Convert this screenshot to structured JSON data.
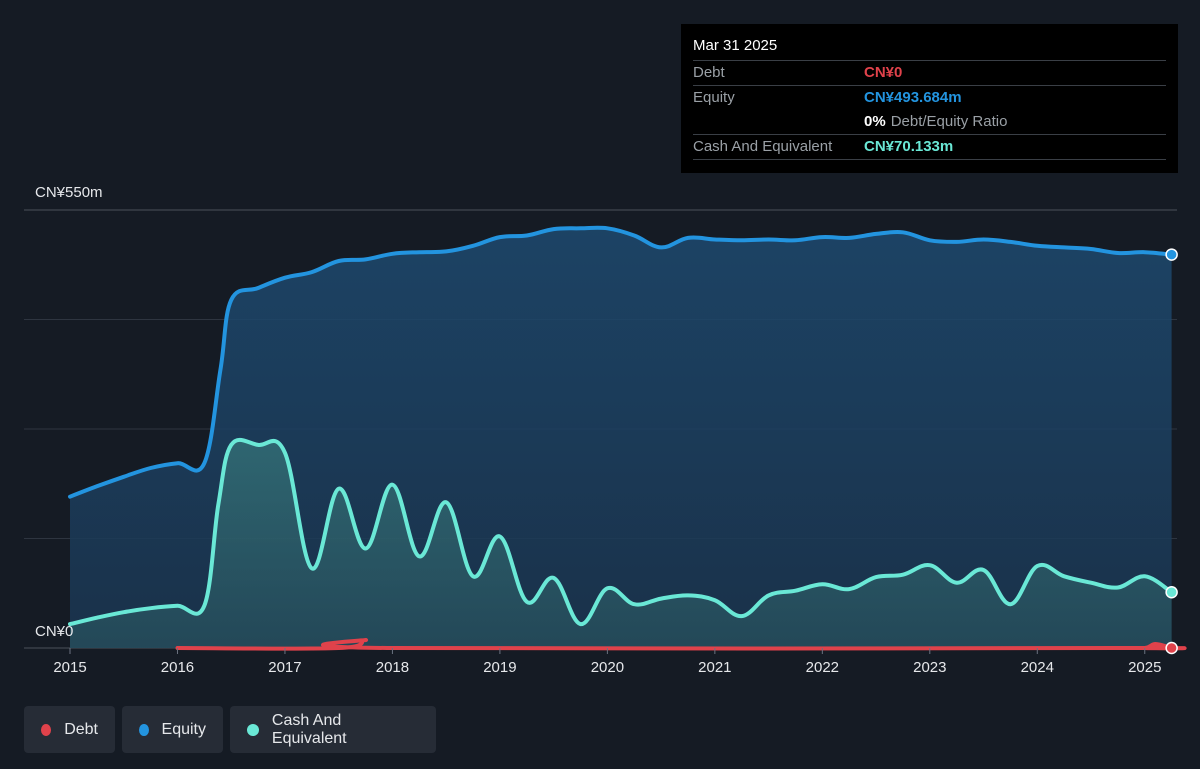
{
  "tooltip": {
    "date": "Mar 31 2025",
    "debt_label": "Debt",
    "debt_value": "CN¥0",
    "equity_label": "Equity",
    "equity_value": "CN¥493.684m",
    "ratio_value": "0%",
    "ratio_label": "Debt/Equity Ratio",
    "cash_label": "Cash And Equivalent",
    "cash_value": "CN¥70.133m"
  },
  "colors": {
    "background": "#151b24",
    "debt": "#e0424b",
    "equity": "#2394df",
    "cash": "#6ae8d6"
  },
  "legend": [
    {
      "label": "Debt",
      "color": "#e0424b"
    },
    {
      "label": "Equity",
      "color": "#2394df"
    },
    {
      "label": "Cash And Equivalent",
      "color": "#6ae8d6"
    }
  ],
  "chart_data": {
    "type": "area",
    "y_top_label": "CN¥550m",
    "y_bottom_label": "CN¥0",
    "ylim": [
      0,
      550
    ],
    "xlim": [
      2015,
      2025.3
    ],
    "grid": true,
    "legend_placement": "bottom-left",
    "x_ticks": [
      "2015",
      "2016",
      "2017",
      "2018",
      "2019",
      "2020",
      "2021",
      "2022",
      "2023",
      "2024",
      "2025"
    ],
    "series": [
      {
        "name": "Equity",
        "points": [
          [
            2015.0,
            190
          ],
          [
            2015.25,
            203
          ],
          [
            2015.5,
            215
          ],
          [
            2015.75,
            226
          ],
          [
            2016.0,
            232
          ],
          [
            2016.25,
            232
          ],
          [
            2016.4,
            350
          ],
          [
            2016.5,
            437
          ],
          [
            2016.75,
            452
          ],
          [
            2017.0,
            465
          ],
          [
            2017.25,
            472
          ],
          [
            2017.5,
            486
          ],
          [
            2017.75,
            488
          ],
          [
            2018.0,
            495
          ],
          [
            2018.25,
            497
          ],
          [
            2018.5,
            498
          ],
          [
            2018.75,
            505
          ],
          [
            2019.0,
            516
          ],
          [
            2019.25,
            518
          ],
          [
            2019.5,
            526
          ],
          [
            2019.75,
            527
          ],
          [
            2020.0,
            527
          ],
          [
            2020.25,
            518
          ],
          [
            2020.5,
            503
          ],
          [
            2020.75,
            515
          ],
          [
            2021.0,
            513
          ],
          [
            2021.25,
            512
          ],
          [
            2021.5,
            513
          ],
          [
            2021.75,
            512
          ],
          [
            2022.0,
            516
          ],
          [
            2022.25,
            515
          ],
          [
            2022.5,
            520
          ],
          [
            2022.75,
            522
          ],
          [
            2023.0,
            512
          ],
          [
            2023.25,
            510
          ],
          [
            2023.5,
            513
          ],
          [
            2023.75,
            510
          ],
          [
            2024.0,
            505
          ],
          [
            2024.25,
            503
          ],
          [
            2024.5,
            501
          ],
          [
            2024.75,
            496
          ],
          [
            2025.0,
            497
          ],
          [
            2025.25,
            494
          ]
        ]
      },
      {
        "name": "Cash And Equivalent",
        "points": [
          [
            2015.0,
            30
          ],
          [
            2015.25,
            38
          ],
          [
            2015.5,
            45
          ],
          [
            2015.75,
            50
          ],
          [
            2016.0,
            53
          ],
          [
            2016.25,
            53
          ],
          [
            2016.38,
            180
          ],
          [
            2016.5,
            255
          ],
          [
            2016.75,
            255
          ],
          [
            2017.0,
            245
          ],
          [
            2017.25,
            100
          ],
          [
            2017.5,
            200
          ],
          [
            2017.75,
            125
          ],
          [
            2018.0,
            205
          ],
          [
            2018.25,
            115
          ],
          [
            2018.5,
            183
          ],
          [
            2018.75,
            90
          ],
          [
            2019.0,
            140
          ],
          [
            2019.25,
            58
          ],
          [
            2019.5,
            88
          ],
          [
            2019.75,
            30
          ],
          [
            2020.0,
            75
          ],
          [
            2020.25,
            55
          ],
          [
            2020.5,
            62
          ],
          [
            2020.75,
            66
          ],
          [
            2021.0,
            60
          ],
          [
            2021.25,
            40
          ],
          [
            2021.5,
            66
          ],
          [
            2021.75,
            72
          ],
          [
            2022.0,
            80
          ],
          [
            2022.25,
            74
          ],
          [
            2022.5,
            89
          ],
          [
            2022.75,
            92
          ],
          [
            2023.0,
            104
          ],
          [
            2023.25,
            82
          ],
          [
            2023.5,
            98
          ],
          [
            2023.75,
            55
          ],
          [
            2024.0,
            103
          ],
          [
            2024.25,
            90
          ],
          [
            2024.5,
            82
          ],
          [
            2024.75,
            76
          ],
          [
            2025.0,
            90
          ],
          [
            2025.25,
            70
          ]
        ]
      },
      {
        "name": "Debt",
        "points": [
          [
            2016.0,
            0
          ],
          [
            2017.5,
            0
          ],
          [
            2017.75,
            10
          ],
          [
            2017.95,
            0
          ],
          [
            2024.75,
            0
          ],
          [
            2025.0,
            0
          ],
          [
            2025.1,
            5
          ],
          [
            2025.25,
            0
          ]
        ]
      }
    ]
  }
}
